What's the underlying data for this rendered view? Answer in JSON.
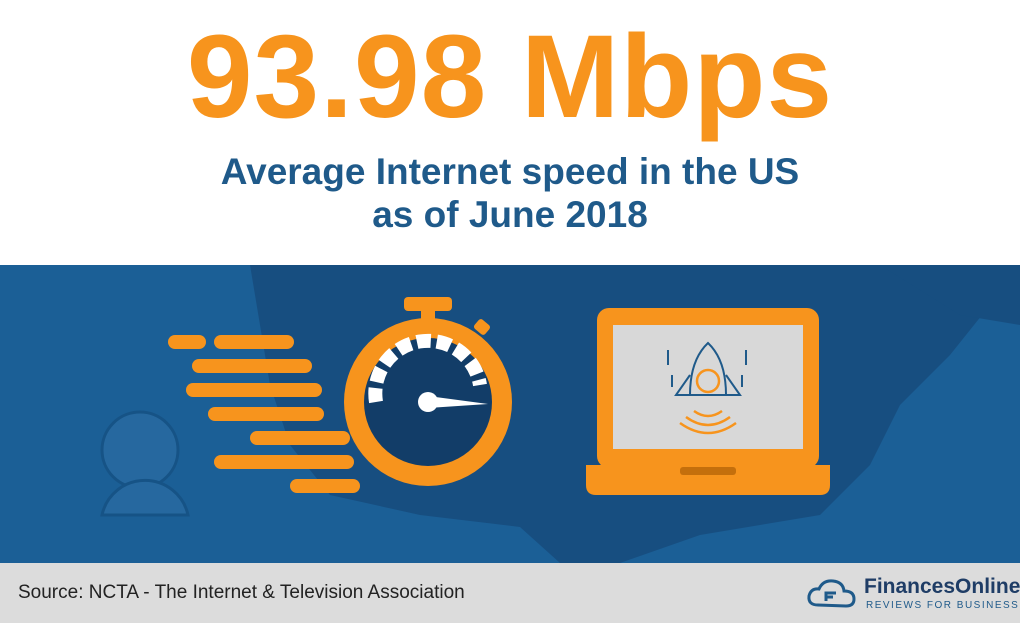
{
  "header": {
    "headline": "93.98 Mbps",
    "subtitle_lines": [
      "Average Internet speed in the US",
      "as of June 2018"
    ]
  },
  "footer": {
    "source": "Source: NCTA - The Internet & Television Association",
    "logo_name": "FinancesOnline",
    "logo_tagline": "REVIEWS FOR BUSINESS"
  }
}
